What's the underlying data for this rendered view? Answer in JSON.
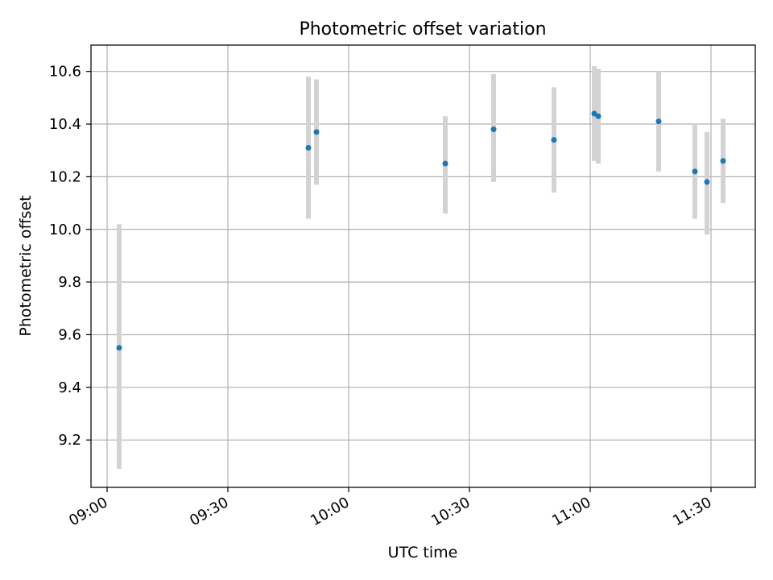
{
  "chart_data": {
    "type": "scatter",
    "title": "Photometric offset variation",
    "xlabel": "UTC time",
    "ylabel": "Photometric offset",
    "x_axis_kind": "time",
    "xlim": [
      "08:56",
      "11:41"
    ],
    "ylim": [
      9.02,
      10.7
    ],
    "grid": true,
    "x_ticks": [
      "09:00",
      "09:30",
      "10:00",
      "10:30",
      "11:00",
      "11:30"
    ],
    "y_ticks": [
      "9.2",
      "9.4",
      "9.6",
      "9.8",
      "10.0",
      "10.2",
      "10.4",
      "10.6"
    ],
    "colors": {
      "marker": "#1f77b4",
      "errorbar": "#d3d3d3",
      "grid": "#b0b0b0"
    },
    "series": [
      {
        "points": [
          {
            "x": "09:03",
            "y": 9.55,
            "low": 9.09,
            "high": 10.02
          },
          {
            "x": "09:50",
            "y": 10.31,
            "low": 10.04,
            "high": 10.58
          },
          {
            "x": "09:52",
            "y": 10.37,
            "low": 10.17,
            "high": 10.57
          },
          {
            "x": "10:24",
            "y": 10.25,
            "low": 10.06,
            "high": 10.43
          },
          {
            "x": "10:36",
            "y": 10.38,
            "low": 10.18,
            "high": 10.59
          },
          {
            "x": "10:51",
            "y": 10.34,
            "low": 10.14,
            "high": 10.54
          },
          {
            "x": "11:01",
            "y": 10.44,
            "low": 10.26,
            "high": 10.62
          },
          {
            "x": "11:02",
            "y": 10.43,
            "low": 10.25,
            "high": 10.61
          },
          {
            "x": "11:17",
            "y": 10.41,
            "low": 10.22,
            "high": 10.6
          },
          {
            "x": "11:26",
            "y": 10.22,
            "low": 10.04,
            "high": 10.4
          },
          {
            "x": "11:29",
            "y": 10.18,
            "low": 9.98,
            "high": 10.37
          },
          {
            "x": "11:33",
            "y": 10.26,
            "low": 10.1,
            "high": 10.42
          }
        ]
      }
    ]
  }
}
